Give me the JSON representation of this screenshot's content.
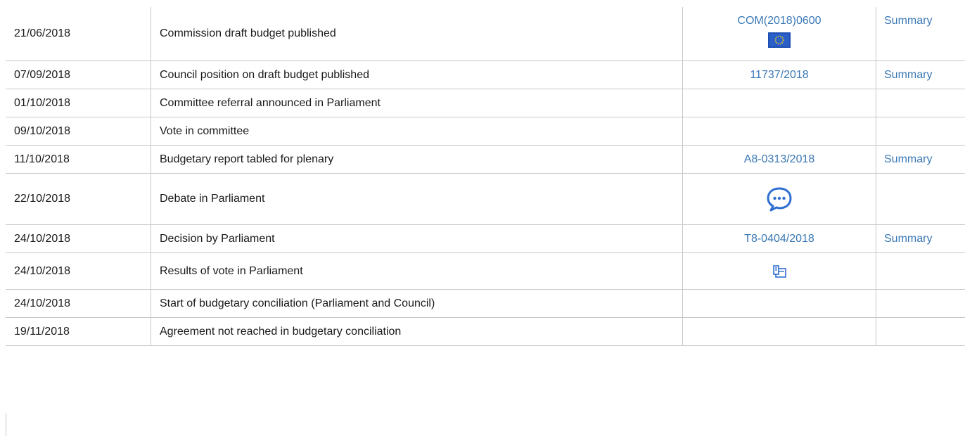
{
  "rows": [
    {
      "date": "21/06/2018",
      "event": "Commission draft budget published",
      "doc": "COM(2018)0600",
      "doc_icon": "eu-flag-icon",
      "summary": "Summary"
    },
    {
      "date": "07/09/2018",
      "event": "Council position on draft budget published",
      "doc": "11737/2018",
      "summary": "Summary"
    },
    {
      "date": "01/10/2018",
      "event": "Committee referral announced in Parliament",
      "doc": "",
      "summary": ""
    },
    {
      "date": "09/10/2018",
      "event": "Vote in committee",
      "doc": "",
      "summary": ""
    },
    {
      "date": "11/10/2018",
      "event": "Budgetary report tabled for plenary",
      "doc": "A8-0313/2018",
      "summary": "Summary"
    },
    {
      "date": "22/10/2018",
      "event": "Debate in Parliament",
      "doc_icon": "debate-speech-bubble-icon",
      "summary": ""
    },
    {
      "date": "24/10/2018",
      "event": "Decision by Parliament",
      "doc": "T8-0404/2018",
      "summary": "Summary"
    },
    {
      "date": "24/10/2018",
      "event": "Results of vote in Parliament",
      "doc_icon": "vote-results-icon",
      "summary": ""
    },
    {
      "date": "24/10/2018",
      "event": "Start of budgetary conciliation (Parliament and Council)",
      "doc": "",
      "summary": ""
    },
    {
      "date": "19/11/2018",
      "event": "Agreement not reached in budgetary conciliation",
      "doc": "",
      "summary": ""
    }
  ],
  "colors": {
    "link": "#3a78b5",
    "border": "#c8c8c8",
    "text": "#1a1a1a",
    "eu_blue": "#1f4fb5",
    "eu_star": "#f2d11a"
  }
}
